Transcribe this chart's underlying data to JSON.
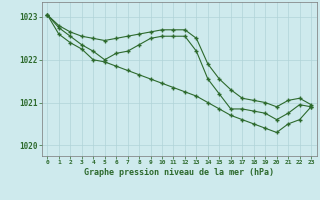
{
  "title": "Graphe pression niveau de la mer (hPa)",
  "background_color": "#ceeaed",
  "grid_color": "#b0d4d8",
  "line_color": "#2d6a2d",
  "xlim": [
    -0.5,
    23.5
  ],
  "ylim": [
    1019.75,
    1023.35
  ],
  "yticks": [
    1020,
    1021,
    1022,
    1023
  ],
  "xticks": [
    0,
    1,
    2,
    3,
    4,
    5,
    6,
    7,
    8,
    9,
    10,
    11,
    12,
    13,
    14,
    15,
    16,
    17,
    18,
    19,
    20,
    21,
    22,
    23
  ],
  "series": [
    {
      "x": [
        0,
        1,
        2,
        3,
        4,
        5,
        6,
        7,
        8,
        9,
        10,
        11,
        12,
        13,
        14,
        15,
        16,
        17,
        18,
        19,
        20,
        21,
        22,
        23
      ],
      "y": [
        1023.05,
        1022.8,
        1022.65,
        1022.55,
        1022.5,
        1022.45,
        1022.5,
        1022.55,
        1022.6,
        1022.65,
        1022.7,
        1022.7,
        1022.7,
        1022.5,
        1021.9,
        1021.55,
        1021.3,
        1021.1,
        1021.05,
        1021.0,
        1020.9,
        1021.05,
        1021.1,
        1020.95
      ]
    },
    {
      "x": [
        0,
        1,
        2,
        3,
        4,
        5,
        6,
        7,
        8,
        9,
        10,
        11,
        12,
        13,
        14,
        15,
        16,
        17,
        18,
        19,
        20,
        21,
        22,
        23
      ],
      "y": [
        1023.05,
        1022.75,
        1022.55,
        1022.35,
        1022.2,
        1022.0,
        1022.15,
        1022.2,
        1022.35,
        1022.5,
        1022.55,
        1022.55,
        1022.55,
        1022.2,
        1021.55,
        1021.2,
        1020.85,
        1020.85,
        1020.8,
        1020.75,
        1020.6,
        1020.75,
        1020.95,
        1020.9
      ]
    },
    {
      "x": [
        0,
        1,
        2,
        3,
        4,
        5,
        6,
        7,
        8,
        9,
        10,
        11,
        12,
        13,
        14,
        15,
        16,
        17,
        18,
        19,
        20,
        21,
        22,
        23
      ],
      "y": [
        1023.05,
        1022.6,
        1022.4,
        1022.25,
        1022.0,
        1021.95,
        1021.85,
        1021.75,
        1021.65,
        1021.55,
        1021.45,
        1021.35,
        1021.25,
        1021.15,
        1021.0,
        1020.85,
        1020.7,
        1020.6,
        1020.5,
        1020.4,
        1020.3,
        1020.5,
        1020.6,
        1020.9
      ]
    }
  ]
}
